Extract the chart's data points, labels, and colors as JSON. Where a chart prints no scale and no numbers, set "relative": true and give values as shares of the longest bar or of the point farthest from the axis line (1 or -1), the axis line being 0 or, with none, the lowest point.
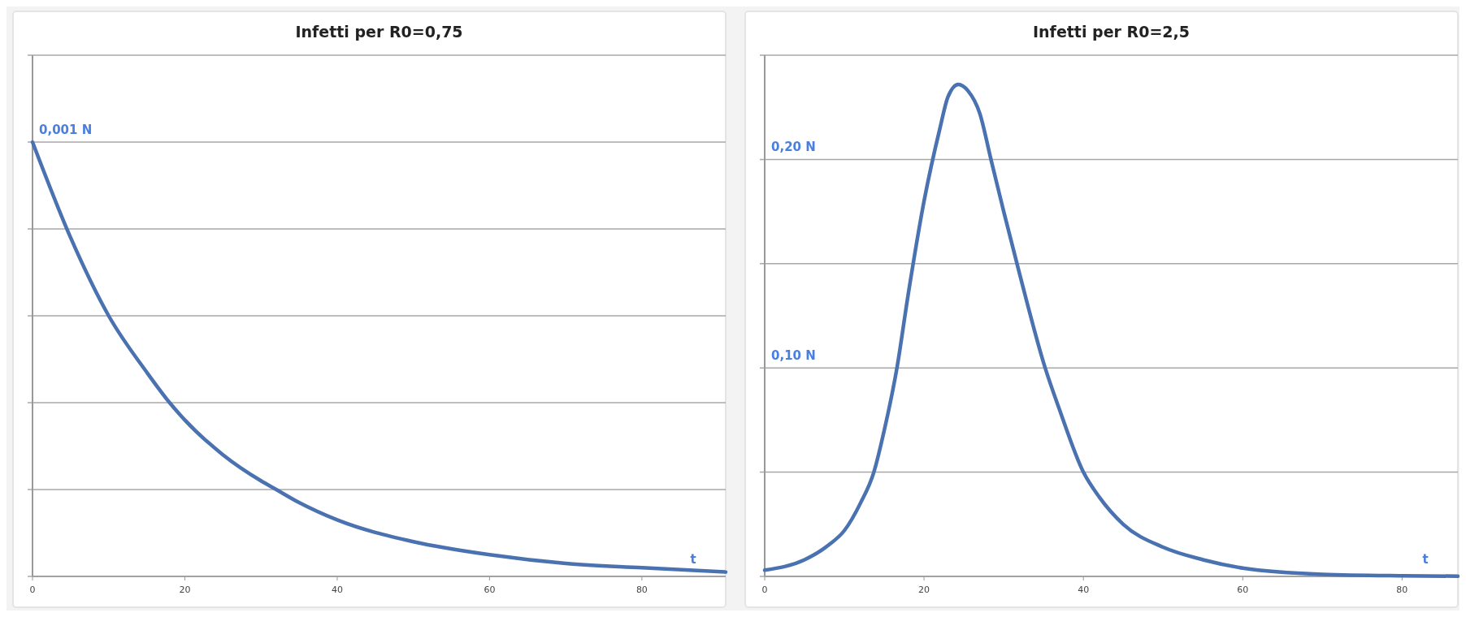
{
  "chart_data": [
    {
      "type": "line",
      "title": "Infetti per R0=0,75",
      "xlabel": "t",
      "relative": true,
      "x": [
        0,
        5,
        10,
        15,
        18,
        20,
        25,
        30,
        32,
        35,
        40,
        50,
        60,
        70,
        80,
        91
      ],
      "series": [
        {
          "color": "#4a72b0",
          "values": [
            1,
            0.78,
            0.6,
            0.47,
            0.4,
            0.36,
            0.28,
            0.22,
            0.2,
            0.17,
            0.13,
            0.08,
            0.05,
            0.03,
            0.02,
            0.01
          ]
        }
      ],
      "annotations": [
        {
          "text": "0,001 N",
          "x": 0,
          "y": 1
        }
      ],
      "xlim": [
        0,
        91
      ],
      "xticks": [
        0,
        20,
        40,
        60,
        80
      ],
      "grid": "y",
      "marker": "none",
      "line_style": "solid"
    },
    {
      "type": "line",
      "title": "Infetti per R0=2,5",
      "xlabel": "t",
      "x": [
        0,
        5,
        8,
        10,
        12,
        13.7,
        15,
        16.6,
        18,
        20,
        22,
        23,
        24.3,
        25.5,
        27,
        28.4,
        30,
        32,
        35.2,
        37,
        40,
        42,
        45,
        50,
        55,
        60,
        70,
        80,
        87
      ],
      "series": [
        {
          "color": "#4a72b0",
          "values": [
            0.003,
            0.008,
            0.015,
            0.022,
            0.035,
            0.05,
            0.07,
            0.1,
            0.135,
            0.18,
            0.215,
            0.23,
            0.236,
            0.233,
            0.222,
            0.2,
            0.175,
            0.145,
            0.1,
            0.08,
            0.05,
            0.038,
            0.025,
            0.014,
            0.008,
            0.004,
            0.001,
            0.0003,
            0.0001
          ]
        }
      ],
      "xlim": [
        0,
        87
      ],
      "xticks": [
        0,
        20,
        40,
        60,
        80
      ],
      "ylim": [
        0,
        0.25
      ],
      "yticks": [
        {
          "value": 0,
          "label": null
        },
        {
          "value": 0.05,
          "label": null
        },
        {
          "value": 0.1,
          "label": "0,10 N"
        },
        {
          "value": 0.15,
          "label": null
        },
        {
          "value": 0.2,
          "label": "0,20 N"
        },
        {
          "value": 0.25,
          "label": null
        }
      ],
      "grid": "y",
      "marker": "none",
      "line_style": "solid"
    }
  ]
}
